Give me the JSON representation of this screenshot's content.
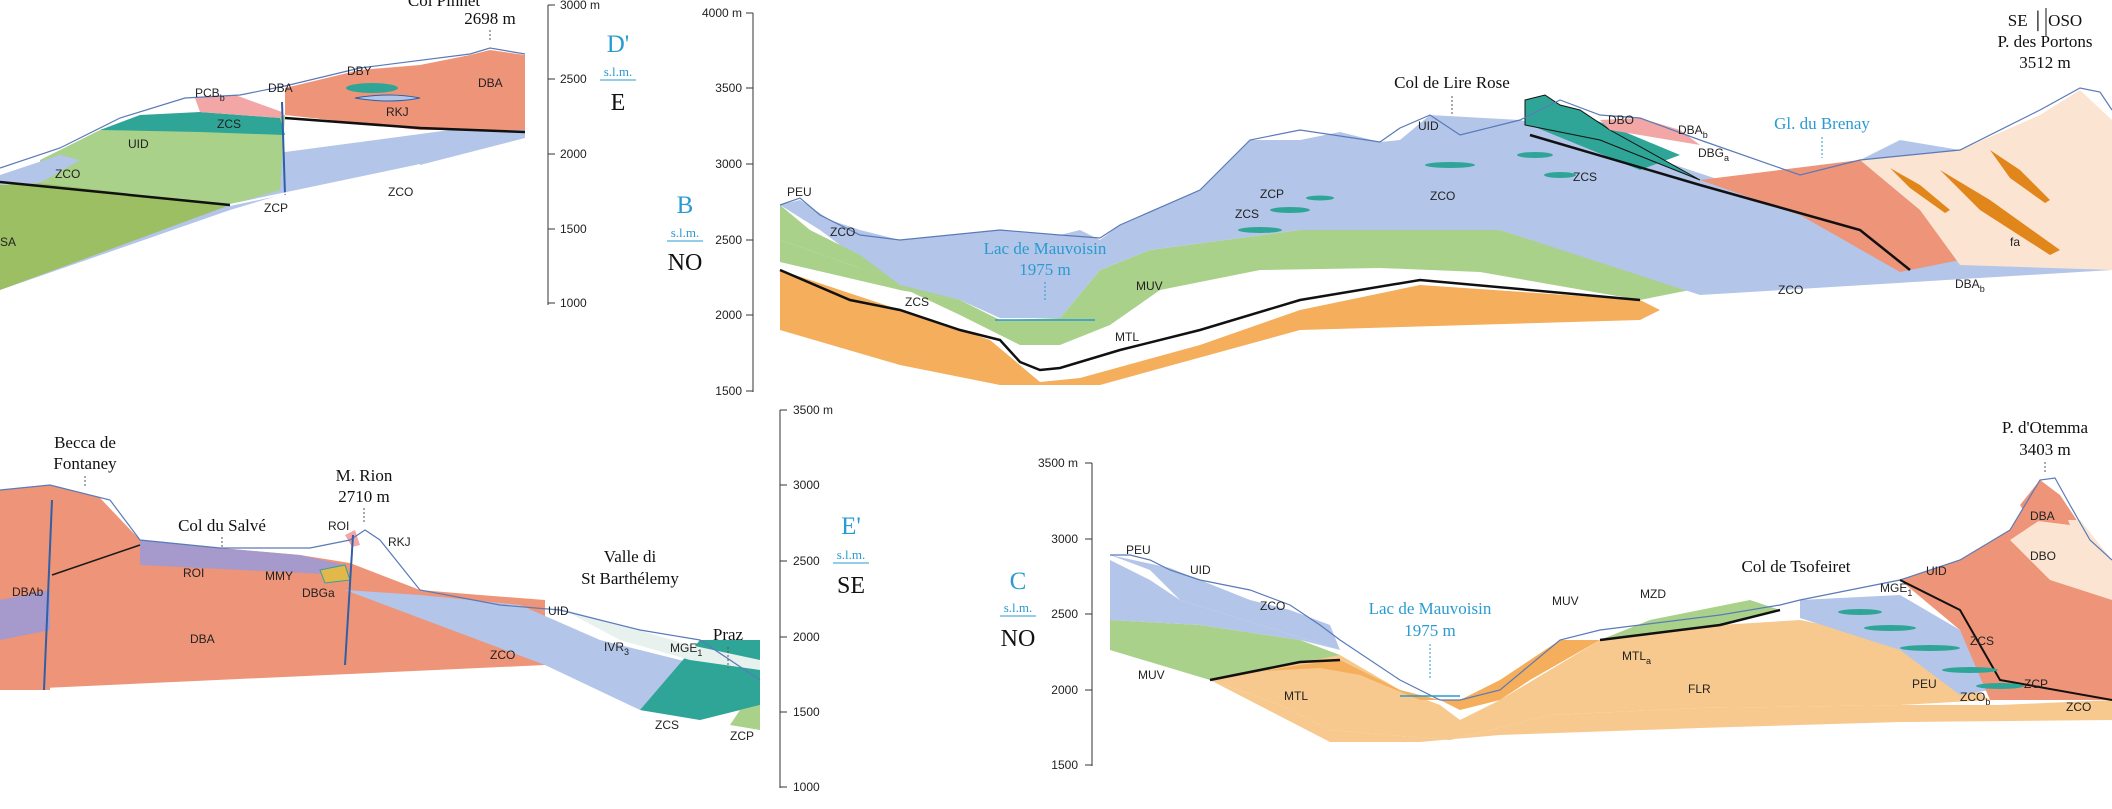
{
  "colors": {
    "dba": "#ee9478",
    "zco": "#b3c5e8",
    "zcs": "#2fa597",
    "green": "#a9d18a",
    "darkgreen": "#9cbf63",
    "mtl": "#f4ae5c",
    "flr": "#f7c98e",
    "roi": "#a699cc",
    "pink": "#f2a6a6",
    "cream": "#fbe4d2",
    "lake": "#2a9bd0",
    "outline": "#2f5fa7"
  },
  "sections": {
    "d_prime": {
      "letter": "D'",
      "slm": "s.l.m.",
      "orient": "E"
    },
    "b": {
      "letter": "B",
      "slm": "s.l.m.",
      "orient": "NO"
    },
    "e_prime": {
      "letter": "E'",
      "slm": "s.l.m.",
      "orient": "SE"
    },
    "c": {
      "letter": "C",
      "slm": "s.l.m.",
      "orient": "NO"
    }
  },
  "axes": {
    "top_left": [
      "3000 m",
      "2500",
      "2000",
      "1500",
      "1000"
    ],
    "top_center": [
      "4000 m",
      "3500",
      "3000",
      "2500",
      "2000",
      "1500"
    ],
    "bottom_center": [
      "3500 m",
      "3000",
      "2500",
      "2000",
      "1500",
      "1000"
    ],
    "bottom_right": [
      "3500 m",
      "3000",
      "2500",
      "2000",
      "1500"
    ]
  },
  "peaks": {
    "col_pinnet_name": "Col Pinnet",
    "col_pinnet_elev": "2698 m",
    "col_lire_rose": "Col de Lire Rose",
    "se_oso": "SE │ OSO",
    "p_portons_name": "P. des Portons",
    "p_portons_elev": "3512 m",
    "becca_1": "Becca de",
    "becca_2": "Fontaney",
    "m_rion_name": "M. Rion",
    "m_rion_elev": "2710 m",
    "col_salve": "Col du Salvé",
    "valle_1": "Valle di",
    "valle_2": "St Barthélemy",
    "praz": "Praz",
    "p_otemma_name": "P. d'Otemma",
    "p_otemma_elev": "3403 m",
    "col_tsofeiret": "Col de Tsofeiret"
  },
  "water": {
    "lake_b_name": "Lac de Mauvoisin",
    "lake_b_elev": "1975 m",
    "glacier": "Gl. du Brenay",
    "lake_c_name": "Lac de Mauvoisin",
    "lake_c_elev": "1975 m"
  },
  "labels": {
    "tl": {
      "uid": "UID",
      "pcb": "PCB",
      "pcb_sub": "b",
      "dba1": "DBA",
      "dby": "DBY",
      "dba2": "DBA",
      "zcs": "ZCS",
      "rkj": "RKJ",
      "zco1": "ZCO",
      "zcp": "ZCP",
      "zco2": "ZCO",
      "sa": "SA"
    },
    "tc": {
      "peu": "PEU",
      "zco1": "ZCO",
      "zcs1": "ZCS",
      "zcp": "ZCP",
      "zcs2": "ZCS",
      "muv": "MUV",
      "mtl": "MTL",
      "uid": "UID",
      "zco2": "ZCO",
      "zcs3": "ZCS",
      "dbo": "DBO",
      "dbb": "DBA",
      "dbb_sub": "b",
      "dbg": "DBG",
      "dbg_sub": "a",
      "zco3": "ZCO",
      "fa": "fa",
      "dbab": "DBA",
      "dbab_sub": "b"
    },
    "bl": {
      "dbab": "DBAb",
      "roi1": "ROI",
      "dba": "DBA",
      "mmy": "MMY",
      "dbga": "DBGa",
      "roi2": "ROI",
      "rkj": "RKJ",
      "zco": "ZCO",
      "uid": "UID",
      "ivr": "IVR",
      "ivr_sub": "3",
      "mge": "MGE",
      "mge_sub": "1",
      "zcs": "ZCS",
      "zcp": "ZCP"
    },
    "br": {
      "peu1": "PEU",
      "uid1": "UID",
      "zco1": "ZCO",
      "muv1": "MUV",
      "mtl": "MTL",
      "muv2": "MUV",
      "mzd": "MZD",
      "mtla": "MTL",
      "mtla_sub": "a",
      "flr": "FLR",
      "mge": "MGE",
      "mge_sub": "1",
      "uid2": "UID",
      "dba": "DBA",
      "dbo": "DBO",
      "zcs": "ZCS",
      "zcp": "ZCP",
      "peu2": "PEU",
      "zcob": "ZCO",
      "zcob_sub": "b",
      "zco2": "ZCO"
    }
  }
}
